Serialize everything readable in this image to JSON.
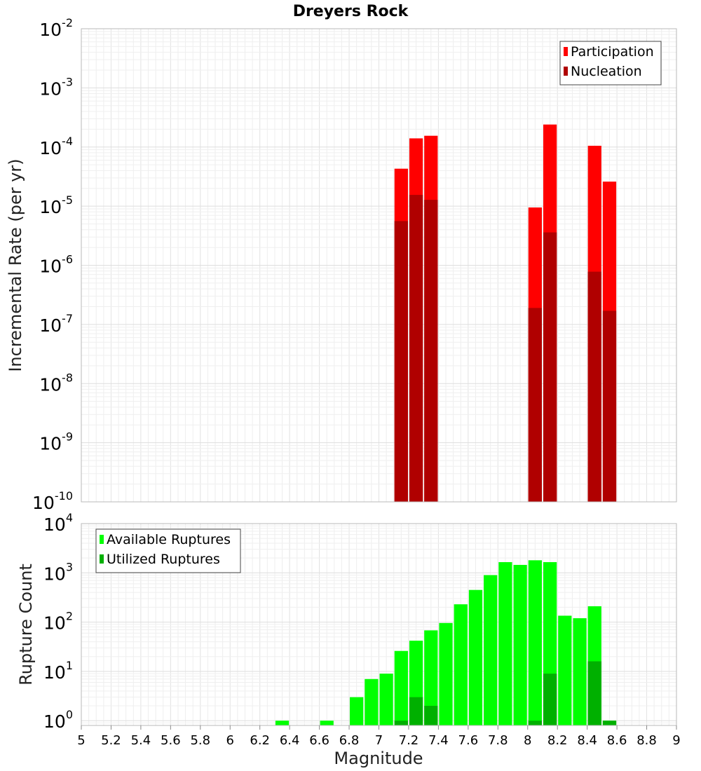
{
  "chart_data": {
    "title": "Dreyers Rock",
    "xlabel": "Magnitude",
    "x_ticks": [
      "5",
      "5.2",
      "5.4",
      "5.6",
      "5.8",
      "6",
      "6.2",
      "6.4",
      "6.6",
      "6.8",
      "7",
      "7.2",
      "7.4",
      "7.6",
      "7.8",
      "8",
      "8.2",
      "8.4",
      "8.6",
      "8.8",
      "9"
    ],
    "xlim": [
      5,
      9
    ],
    "bin_width": 0.1,
    "panels": [
      {
        "type": "bar",
        "ylabel": "Incremental Rate (per yr)",
        "yscale": "log",
        "ylim": [
          1e-10,
          0.01
        ],
        "y_tick_exponents": [
          "-10",
          "-9",
          "-8",
          "-7",
          "-6",
          "-5",
          "-4",
          "-3",
          "-2"
        ],
        "legend": {
          "position": "top-right",
          "entries": [
            "Participation",
            "Nucleation"
          ]
        },
        "series": [
          {
            "name": "Participation",
            "color": "#ff0000",
            "x": [
              7.15,
              7.25,
              7.35,
              8.05,
              8.15,
              8.45,
              8.55
            ],
            "values": [
              4.3e-05,
              0.00014,
              0.000155,
              9.5e-06,
              0.00024,
              0.000105,
              2.6e-05
            ]
          },
          {
            "name": "Nucleation",
            "color": "#b00000",
            "x": [
              7.15,
              7.25,
              7.35,
              8.05,
              8.15,
              8.45,
              8.55
            ],
            "values": [
              5.6e-06,
              1.55e-05,
              1.28e-05,
              1.9e-07,
              3.6e-06,
              7.8e-07,
              1.7e-07
            ]
          }
        ]
      },
      {
        "type": "bar",
        "ylabel": "Rupture Count",
        "yscale": "log",
        "ylim": [
          0.8,
          10000
        ],
        "y_tick_exponents": [
          "0",
          "1",
          "2",
          "3",
          "4"
        ],
        "legend": {
          "position": "top-left",
          "entries": [
            "Available Ruptures",
            "Utilized Ruptures"
          ]
        },
        "series": [
          {
            "name": "Available Ruptures",
            "color": "#00ff00",
            "x": [
              6.35,
              6.65,
              6.85,
              6.95,
              7.05,
              7.15,
              7.25,
              7.35,
              7.45,
              7.55,
              7.65,
              7.75,
              7.85,
              7.95,
              8.05,
              8.15,
              8.25,
              8.35,
              8.45,
              8.55
            ],
            "values": [
              1,
              1,
              3,
              7,
              9,
              26,
              42,
              68,
              96,
              230,
              450,
              900,
              1650,
              1450,
              1800,
              1650,
              135,
              120,
              210,
              1
            ]
          },
          {
            "name": "Utilized Ruptures",
            "color": "#00b000",
            "x": [
              7.15,
              7.25,
              7.35,
              8.05,
              8.15,
              8.45,
              8.55
            ],
            "values": [
              1,
              3,
              2,
              1,
              9,
              16,
              1
            ]
          }
        ]
      }
    ]
  }
}
